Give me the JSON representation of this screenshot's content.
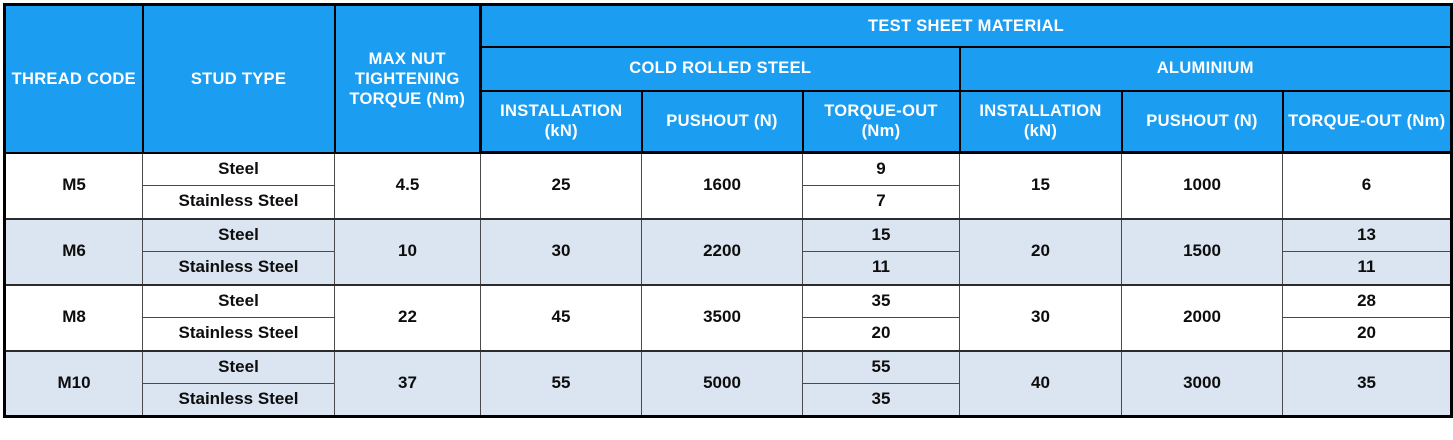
{
  "colors": {
    "header-blue": "#1b9df2",
    "band-blue": "#dbe5f1",
    "header-text": "#ffffff",
    "data-text": "#0d0d0d"
  },
  "header": {
    "thread_code": "THREAD CODE",
    "stud_type": "STUD TYPE",
    "max_nut_torque": "MAX NUT TIGHTENING TORQUE (Nm)",
    "test_sheet_material": "TEST SHEET MATERIAL",
    "cold_rolled_steel": "COLD ROLLED STEEL",
    "aluminium": "ALUMINIUM",
    "installation": "INSTALLATION (kN)",
    "pushout": "PUSHOUT (N)",
    "torque_out": "TORQUE-OUT (Nm)"
  },
  "stud": {
    "steel": "Steel",
    "stainless": "Stainless Steel"
  },
  "rows": [
    {
      "thread": "M5",
      "torque": "4.5",
      "crs_install": "25",
      "crs_pushout": "1600",
      "crs_tq_steel": "9",
      "crs_tq_stainless": "7",
      "al_install": "15",
      "al_pushout": "1000",
      "al_tq": "6"
    },
    {
      "thread": "M6",
      "torque": "10",
      "crs_install": "30",
      "crs_pushout": "2200",
      "crs_tq_steel": "15",
      "crs_tq_stainless": "11",
      "al_install": "20",
      "al_pushout": "1500",
      "al_tq_steel": "13",
      "al_tq_stainless": "11"
    },
    {
      "thread": "M8",
      "torque": "22",
      "crs_install": "45",
      "crs_pushout": "3500",
      "crs_tq_steel": "35",
      "crs_tq_stainless": "20",
      "al_install": "30",
      "al_pushout": "2000",
      "al_tq_steel": "28",
      "al_tq_stainless": "20"
    },
    {
      "thread": "M10",
      "torque": "37",
      "crs_install": "55",
      "crs_pushout": "5000",
      "crs_tq_steel": "55",
      "crs_tq_stainless": "35",
      "al_install": "40",
      "al_pushout": "3000",
      "al_tq": "35"
    }
  ]
}
